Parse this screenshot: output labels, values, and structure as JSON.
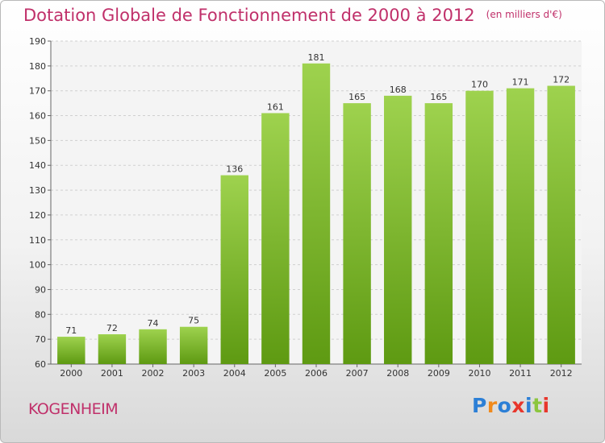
{
  "title": "Dotation Globale de Fonctionnement de 2000 à 2012",
  "unit": "(en milliers d'€)",
  "commune": "KOGENHEIM",
  "logo": [
    "P",
    "r",
    "o",
    "x",
    "i",
    "t",
    "i"
  ],
  "colors": {
    "title": "#c0306a",
    "bar_light": "#9ed24e",
    "bar_dark": "#5e9a12",
    "logo": [
      "#2c7fd6",
      "#f08a1c",
      "#2c7fd6",
      "#e8362c",
      "#2c7fd6",
      "#8cc63f",
      "#e8362c"
    ]
  },
  "chart_data": {
    "type": "bar",
    "categories": [
      "2000",
      "2001",
      "2002",
      "2003",
      "2004",
      "2005",
      "2006",
      "2007",
      "2008",
      "2009",
      "2010",
      "2011",
      "2012"
    ],
    "values": [
      71,
      72,
      74,
      75,
      136,
      161,
      181,
      165,
      168,
      165,
      170,
      171,
      172
    ],
    "ylim": [
      60,
      190
    ],
    "yticks": [
      60,
      70,
      80,
      90,
      100,
      110,
      120,
      130,
      140,
      150,
      160,
      170,
      180,
      190
    ],
    "grid": true,
    "xlabel": "",
    "ylabel": ""
  }
}
